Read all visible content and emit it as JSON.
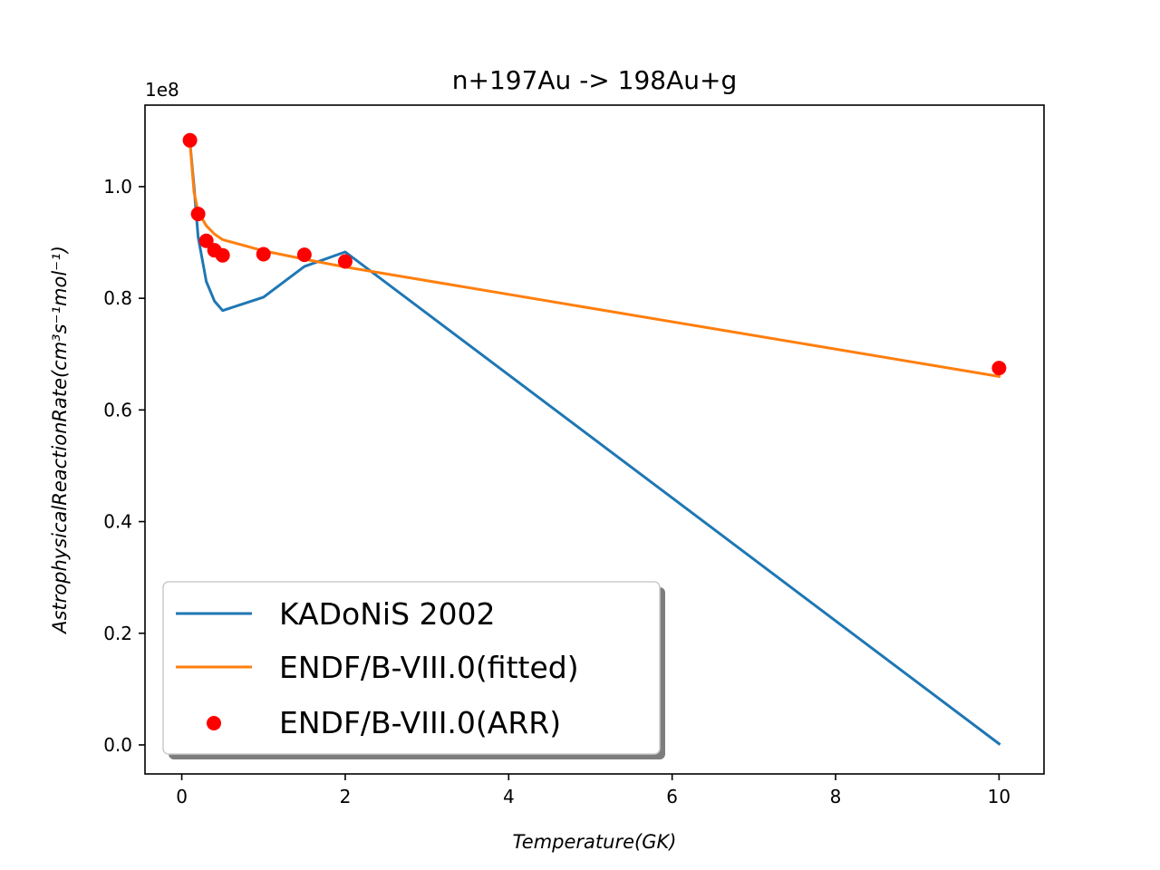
{
  "chart_data": {
    "type": "line",
    "title": "n+197Au -> 198Au+g",
    "xlabel": "Temperature(GK)",
    "ylabel": "AstrophysicalReactionRate(cm³s⁻¹mol⁻¹)",
    "offset_text": "1e8",
    "xlim": [
      -0.45,
      10.55
    ],
    "ylim": [
      -0.052,
      1.146
    ],
    "x_ticks": [
      0,
      2,
      4,
      6,
      8,
      10
    ],
    "x_tick_labels": [
      "0",
      "2",
      "4",
      "6",
      "8",
      "10"
    ],
    "y_ticks": [
      0.0,
      0.2,
      0.4,
      0.6,
      0.8,
      1.0
    ],
    "y_tick_labels": [
      "0.0",
      "0.2",
      "0.4",
      "0.6",
      "0.8",
      "1.0"
    ],
    "grid": false,
    "legend_position": "lower-left",
    "series": [
      {
        "name": "KADoNiS 2002",
        "kind": "line",
        "color": "#1f77b4",
        "x": [
          0.1,
          0.15,
          0.2,
          0.3,
          0.4,
          0.5,
          1.0,
          1.5,
          2.0,
          10.0
        ],
        "y": [
          1.08,
          1.0,
          0.91,
          0.83,
          0.795,
          0.778,
          0.802,
          0.857,
          0.883,
          0.002
        ]
      },
      {
        "name": "ENDF/B-VIII.0(fitted)",
        "kind": "line",
        "color": "#ff7f0e",
        "x": [
          0.1,
          0.15,
          0.2,
          0.3,
          0.4,
          0.5,
          1.0,
          1.5,
          2.0,
          10.0
        ],
        "y": [
          1.08,
          0.99,
          0.955,
          0.93,
          0.915,
          0.905,
          0.885,
          0.87,
          0.856,
          0.66
        ]
      },
      {
        "name": "ENDF/B-VIII.0(ARR)",
        "kind": "scatter",
        "color": "#ff0000",
        "x": [
          0.1,
          0.2,
          0.3,
          0.4,
          0.5,
          1.0,
          1.5,
          2.0,
          10.0
        ],
        "y": [
          1.083,
          0.951,
          0.903,
          0.886,
          0.877,
          0.879,
          0.878,
          0.866,
          0.675
        ]
      }
    ]
  }
}
